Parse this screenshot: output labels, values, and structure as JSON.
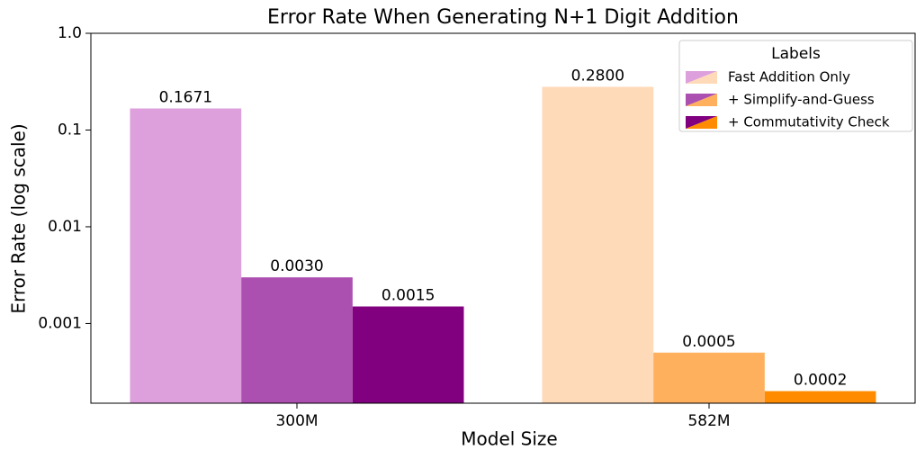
{
  "chart_data": {
    "type": "bar",
    "title": "Error Rate When Generating N+1 Digit Addition",
    "x_label": "Model Size",
    "y_label": "Error Rate (log scale)",
    "categories": [
      "300M",
      "582M"
    ],
    "series": [
      {
        "name": "Fast Addition Only",
        "colors": [
          "#dda0dd",
          "#ffdab9"
        ],
        "values": [
          0.1671,
          0.28
        ],
        "value_labels": [
          "0.1671",
          "0.2800"
        ]
      },
      {
        "name": "+ Simplify-and-Guess",
        "colors": [
          "#ab4fb0",
          "#ffb05c"
        ],
        "values": [
          0.003,
          0.0005
        ],
        "value_labels": [
          "0.0030",
          "0.0005"
        ]
      },
      {
        "name": "+ Commutativity Check",
        "colors": [
          "#800080",
          "#ff8c00"
        ],
        "values": [
          0.0015,
          0.0002
        ],
        "value_labels": [
          "0.0015",
          "0.0002"
        ]
      }
    ],
    "y_scale": "log",
    "ylim": [
      0.00015,
      1
    ],
    "yticks": [
      {
        "value": 1,
        "label": "1.0"
      },
      0.1,
      0.01,
      0.001
    ],
    "legend_title": "Labels",
    "legend": "upper right"
  }
}
